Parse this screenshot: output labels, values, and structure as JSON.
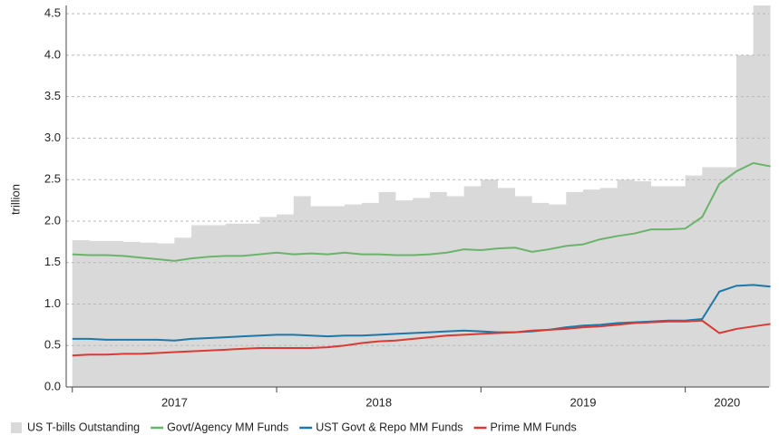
{
  "chart_data": {
    "type": "line",
    "ylabel": "trillion",
    "x": [
      2017.0,
      2017.083,
      2017.167,
      2017.25,
      2017.333,
      2017.417,
      2017.5,
      2017.583,
      2017.667,
      2017.75,
      2017.833,
      2017.917,
      2018.0,
      2018.083,
      2018.167,
      2018.25,
      2018.333,
      2018.417,
      2018.5,
      2018.583,
      2018.667,
      2018.75,
      2018.833,
      2018.917,
      2019.0,
      2019.083,
      2019.167,
      2019.25,
      2019.333,
      2019.417,
      2019.5,
      2019.583,
      2019.667,
      2019.75,
      2019.833,
      2019.917,
      2020.0,
      2020.083,
      2020.167,
      2020.25,
      2020.333,
      2020.417
    ],
    "series": [
      {
        "name": "US T-bills Outstanding",
        "color": "#d9d9d9",
        "fill": true,
        "values": [
          1.77,
          1.76,
          1.76,
          1.75,
          1.74,
          1.73,
          1.8,
          1.95,
          1.95,
          1.97,
          1.97,
          2.05,
          2.08,
          2.3,
          2.18,
          2.18,
          2.2,
          2.22,
          2.35,
          2.25,
          2.28,
          2.35,
          2.3,
          2.42,
          2.5,
          2.4,
          2.3,
          2.22,
          2.2,
          2.35,
          2.38,
          2.4,
          2.5,
          2.48,
          2.42,
          2.42,
          2.55,
          2.65,
          2.65,
          4.0,
          4.6,
          4.6
        ]
      },
      {
        "name": "Govt/Agency MM Funds",
        "color": "#6ab46a",
        "values": [
          1.6,
          1.59,
          1.59,
          1.58,
          1.56,
          1.54,
          1.52,
          1.55,
          1.57,
          1.58,
          1.58,
          1.6,
          1.62,
          1.6,
          1.61,
          1.6,
          1.62,
          1.6,
          1.6,
          1.59,
          1.59,
          1.6,
          1.62,
          1.66,
          1.65,
          1.67,
          1.68,
          1.63,
          1.66,
          1.7,
          1.72,
          1.78,
          1.82,
          1.85,
          1.9,
          1.9,
          1.91,
          2.05,
          2.45,
          2.6,
          2.7,
          2.66
        ]
      },
      {
        "name": "UST Govt & Repo MM Funds",
        "color": "#1f77a8",
        "values": [
          0.58,
          0.58,
          0.57,
          0.57,
          0.57,
          0.57,
          0.56,
          0.58,
          0.59,
          0.6,
          0.61,
          0.62,
          0.63,
          0.63,
          0.62,
          0.61,
          0.62,
          0.62,
          0.63,
          0.64,
          0.65,
          0.66,
          0.67,
          0.68,
          0.67,
          0.66,
          0.66,
          0.67,
          0.69,
          0.72,
          0.74,
          0.75,
          0.77,
          0.78,
          0.79,
          0.8,
          0.8,
          0.82,
          1.15,
          1.22,
          1.23,
          1.21
        ]
      },
      {
        "name": "Prime MM Funds",
        "color": "#d93a34",
        "values": [
          0.38,
          0.39,
          0.39,
          0.4,
          0.4,
          0.41,
          0.42,
          0.43,
          0.44,
          0.45,
          0.46,
          0.47,
          0.47,
          0.47,
          0.47,
          0.48,
          0.5,
          0.53,
          0.55,
          0.56,
          0.58,
          0.6,
          0.62,
          0.63,
          0.64,
          0.65,
          0.66,
          0.68,
          0.69,
          0.7,
          0.72,
          0.73,
          0.75,
          0.77,
          0.78,
          0.79,
          0.79,
          0.8,
          0.65,
          0.7,
          0.73,
          0.76
        ]
      }
    ],
    "xlim": [
      2016.97,
      2020.41
    ],
    "xticks": [
      {
        "value": 2017,
        "label": "2017"
      },
      {
        "value": 2018,
        "label": "2018"
      },
      {
        "value": 2019,
        "label": "2019"
      },
      {
        "value": 2020,
        "label": "2020"
      }
    ],
    "ylim": [
      0,
      4.6
    ],
    "yticks": [
      {
        "value": 0,
        "label": "0.0"
      },
      {
        "value": 0.5,
        "label": "0.5"
      },
      {
        "value": 1,
        "label": "1.0"
      },
      {
        "value": 1.5,
        "label": "1.5"
      },
      {
        "value": 2,
        "label": "2.0"
      },
      {
        "value": 2.5,
        "label": "2.5"
      },
      {
        "value": 3,
        "label": "3.0"
      },
      {
        "value": 3.5,
        "label": "3.5"
      },
      {
        "value": 4,
        "label": "4.0"
      },
      {
        "value": 4.5,
        "label": "4.5"
      }
    ],
    "grid": true,
    "legend": "bottom"
  }
}
